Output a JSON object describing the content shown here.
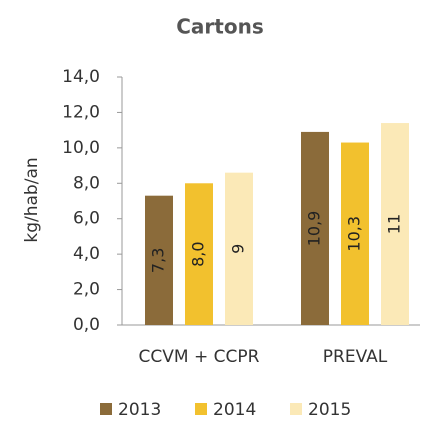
{
  "chart_data": {
    "type": "bar",
    "title": "Cartons",
    "y_label": "kg/hab/an",
    "categories": [
      "CCVM + CCPR",
      "PREVAL"
    ],
    "series": [
      {
        "name": "2013",
        "color": "#8b6b3a",
        "values": [
          7.3,
          10.9
        ],
        "value_labels": [
          "7,3",
          "10,9"
        ]
      },
      {
        "name": "2014",
        "color": "#f2c12e",
        "values": [
          8.0,
          10.3
        ],
        "value_labels": [
          "8,0",
          "10,3"
        ]
      },
      {
        "name": "2015",
        "color": "#fbe9b7",
        "values": [
          8.6,
          11.4
        ],
        "value_labels": [
          "9",
          "11"
        ]
      }
    ],
    "ylim": [
      0,
      14
    ],
    "yticks": [
      {
        "value": 0,
        "label": "0,0"
      },
      {
        "value": 2,
        "label": "2,0"
      },
      {
        "value": 4,
        "label": "4,0"
      },
      {
        "value": 6,
        "label": "6,0"
      },
      {
        "value": 8,
        "label": "8,0"
      },
      {
        "value": 10,
        "label": "10,0"
      },
      {
        "value": 12,
        "label": "12,0"
      },
      {
        "value": 14,
        "label": "14,0"
      }
    ],
    "grid": false
  }
}
